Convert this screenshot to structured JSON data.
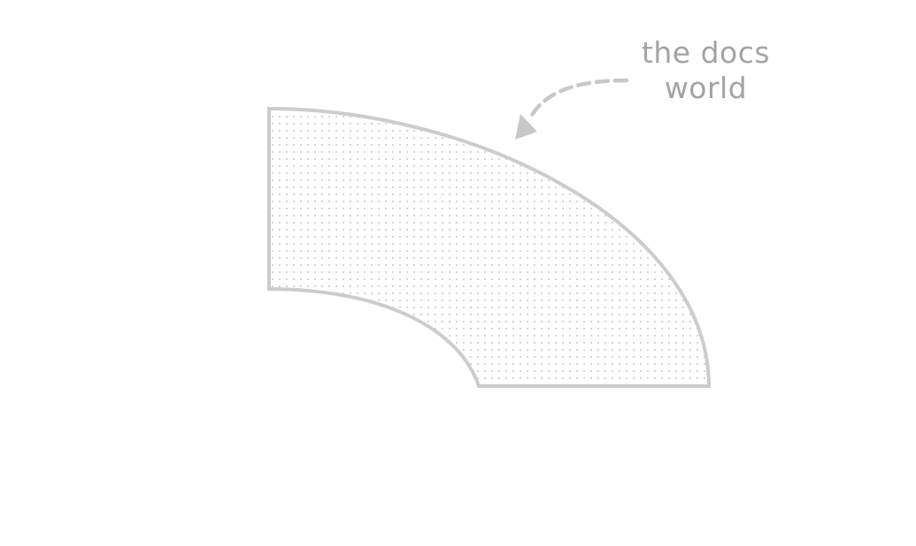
{
  "annotation": {
    "line1": "the docs",
    "line2": "world"
  },
  "colors": {
    "outline": "#cccccc",
    "dots": "#d2d2d2",
    "fill": "#ffffff",
    "text": "#a3a3a3",
    "arrow": "#c8c8c8"
  }
}
